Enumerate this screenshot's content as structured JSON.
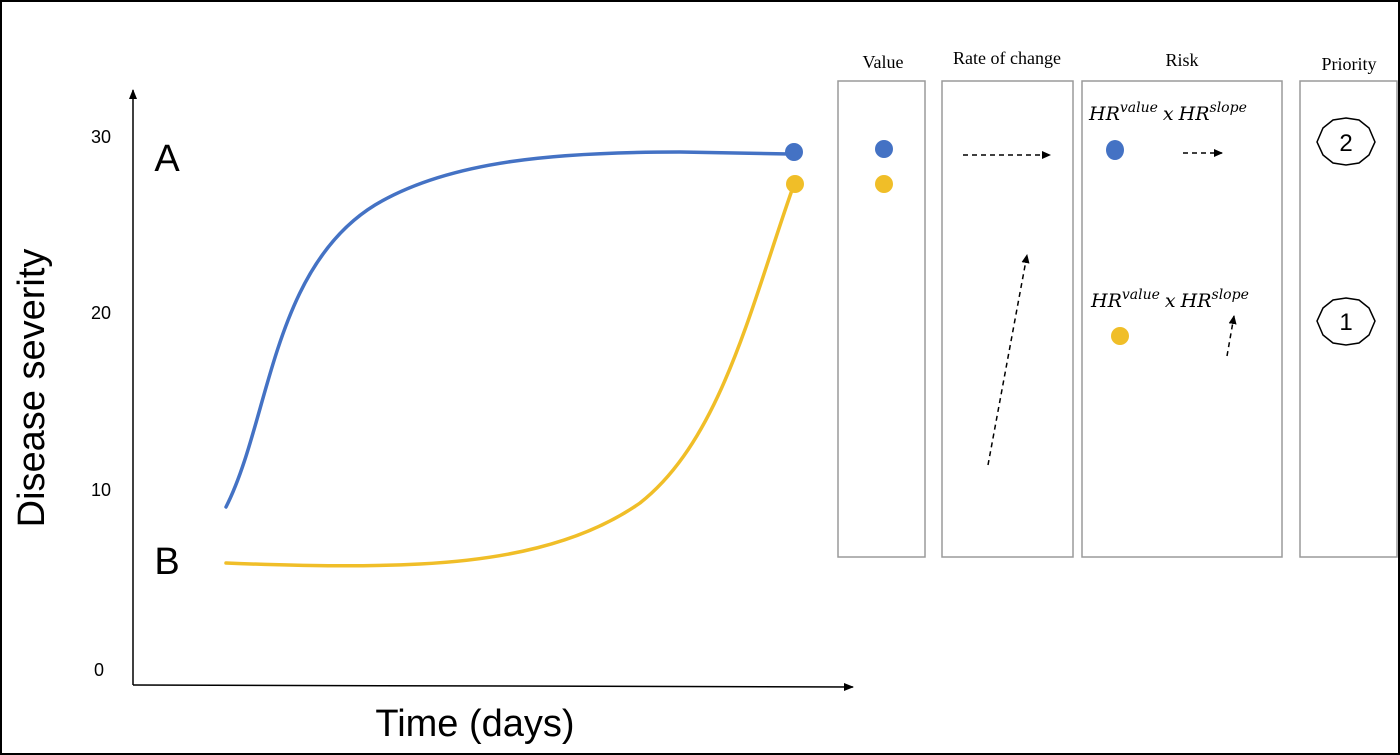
{
  "axes": {
    "y_label": "Disease severity",
    "x_label": "Time (days)",
    "y_ticks": [
      "30",
      "20",
      "10",
      "0"
    ]
  },
  "curves": {
    "a_label": "A",
    "b_label": "B",
    "a_color": "#4472C4",
    "b_color": "#F0BE28"
  },
  "panels": {
    "value_title": "Value",
    "rate_title": "Rate of change",
    "risk_title": "Risk",
    "priority_title": "Priority"
  },
  "risk": {
    "a": {
      "hr": "HR",
      "value_sup": "value",
      "times": "x",
      "hr2": "HR",
      "slope_sup": "slope"
    },
    "b": {
      "hr": "HR",
      "value_sup": "value",
      "times": "x",
      "hr2": "HR",
      "slope_sup": "slope"
    }
  },
  "priority": {
    "a": "2",
    "b": "1"
  }
}
